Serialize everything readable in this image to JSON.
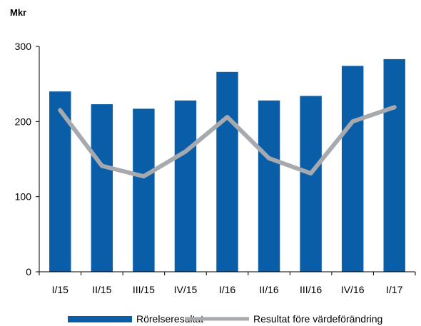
{
  "chart_data": {
    "type": "bar",
    "unit_label": "Mkr",
    "categories": [
      "I/15",
      "II/15",
      "III/15",
      "IV/15",
      "I/16",
      "II/16",
      "III/16",
      "IV/16",
      "I/17"
    ],
    "yticks": [
      "0",
      "100",
      "200",
      "300"
    ],
    "ylim": [
      0,
      300
    ],
    "series": [
      {
        "name": "Rörelseresultat",
        "type": "bar",
        "color": "#0a5ea8",
        "values": [
          240,
          223,
          217,
          228,
          266,
          228,
          234,
          274,
          283
        ]
      },
      {
        "name": "Resultat före värdeförändring",
        "type": "line",
        "color": "#a6a9ad",
        "values": [
          215,
          141,
          127,
          160,
          206,
          151,
          131,
          200,
          219
        ]
      }
    ],
    "grid": false,
    "legend_position": "bottom"
  }
}
